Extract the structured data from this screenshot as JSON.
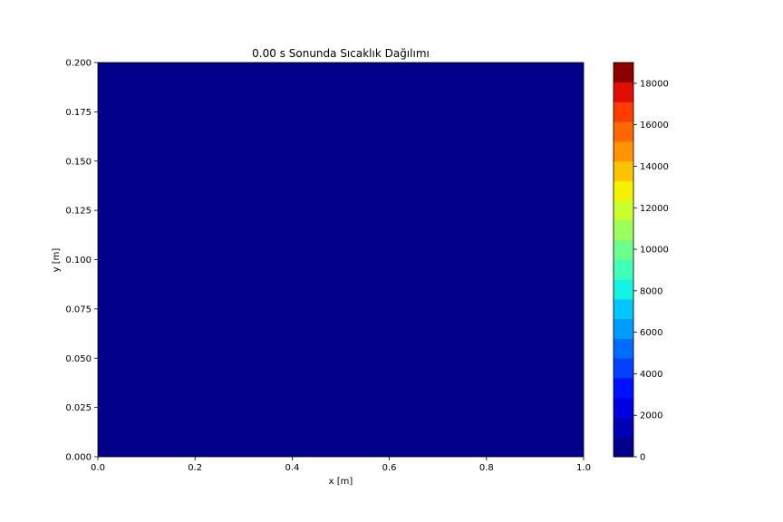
{
  "chart_data": {
    "type": "heatmap",
    "title": "0.00 s Sonunda Sıcaklık Dağılımı",
    "xlabel": "x [m]",
    "ylabel": "y [m]",
    "xlim": [
      0.0,
      1.0
    ],
    "ylim": [
      0.0,
      0.2
    ],
    "x_ticks": [
      "0.0",
      "0.2",
      "0.4",
      "0.6",
      "0.8",
      "1.0"
    ],
    "y_ticks": [
      "0.000",
      "0.025",
      "0.050",
      "0.075",
      "0.100",
      "0.125",
      "0.150",
      "0.175",
      "0.200"
    ],
    "field_value": 0,
    "colormap": "jet",
    "field_color": "#00008b",
    "colorbar": {
      "min": 0,
      "max": 19000,
      "levels": 20,
      "ticks": [
        "0",
        "2000",
        "4000",
        "6000",
        "8000",
        "10000",
        "12000",
        "14000",
        "16000",
        "18000"
      ],
      "colors": [
        "#00008b",
        "#0000b7",
        "#0000e3",
        "#0010ff",
        "#0040ff",
        "#006cff",
        "#009cff",
        "#00c8ff",
        "#14f4e3",
        "#40ffb7",
        "#6cff8b",
        "#9cff5b",
        "#c8ff2f",
        "#f4f000",
        "#ffc400",
        "#ff9400",
        "#ff6800",
        "#ff3c00",
        "#e30c00",
        "#8b0000"
      ]
    },
    "grid": false,
    "legend": "none"
  }
}
